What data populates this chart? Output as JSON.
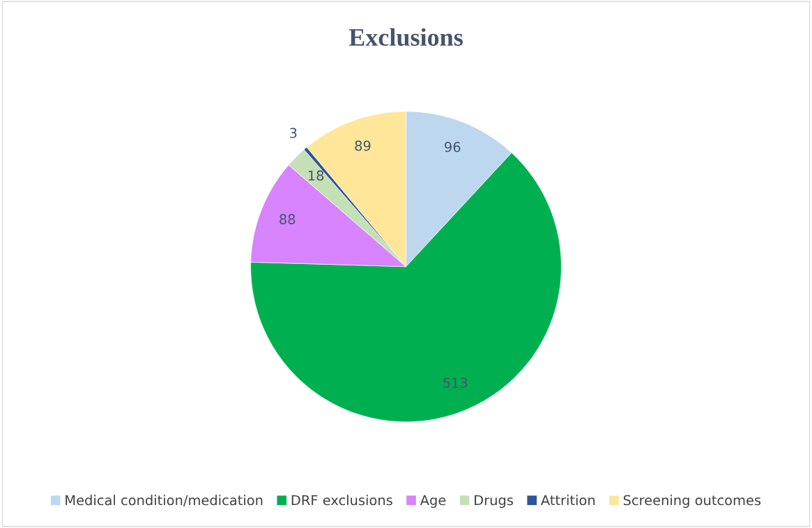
{
  "chart_data": {
    "type": "pie",
    "title": "Exclusions",
    "categories": [
      "Medical condition/medication",
      "DRF exclusions",
      "Age",
      "Drugs",
      "Attrition",
      "Screening outcomes"
    ],
    "values": [
      96,
      513,
      88,
      18,
      3,
      89
    ],
    "colors": [
      "#bdd7ee",
      "#00b050",
      "#d883ff",
      "#c5e0b4",
      "#2f5597",
      "#ffe699"
    ],
    "data_labels": true,
    "legend": "bottom"
  }
}
